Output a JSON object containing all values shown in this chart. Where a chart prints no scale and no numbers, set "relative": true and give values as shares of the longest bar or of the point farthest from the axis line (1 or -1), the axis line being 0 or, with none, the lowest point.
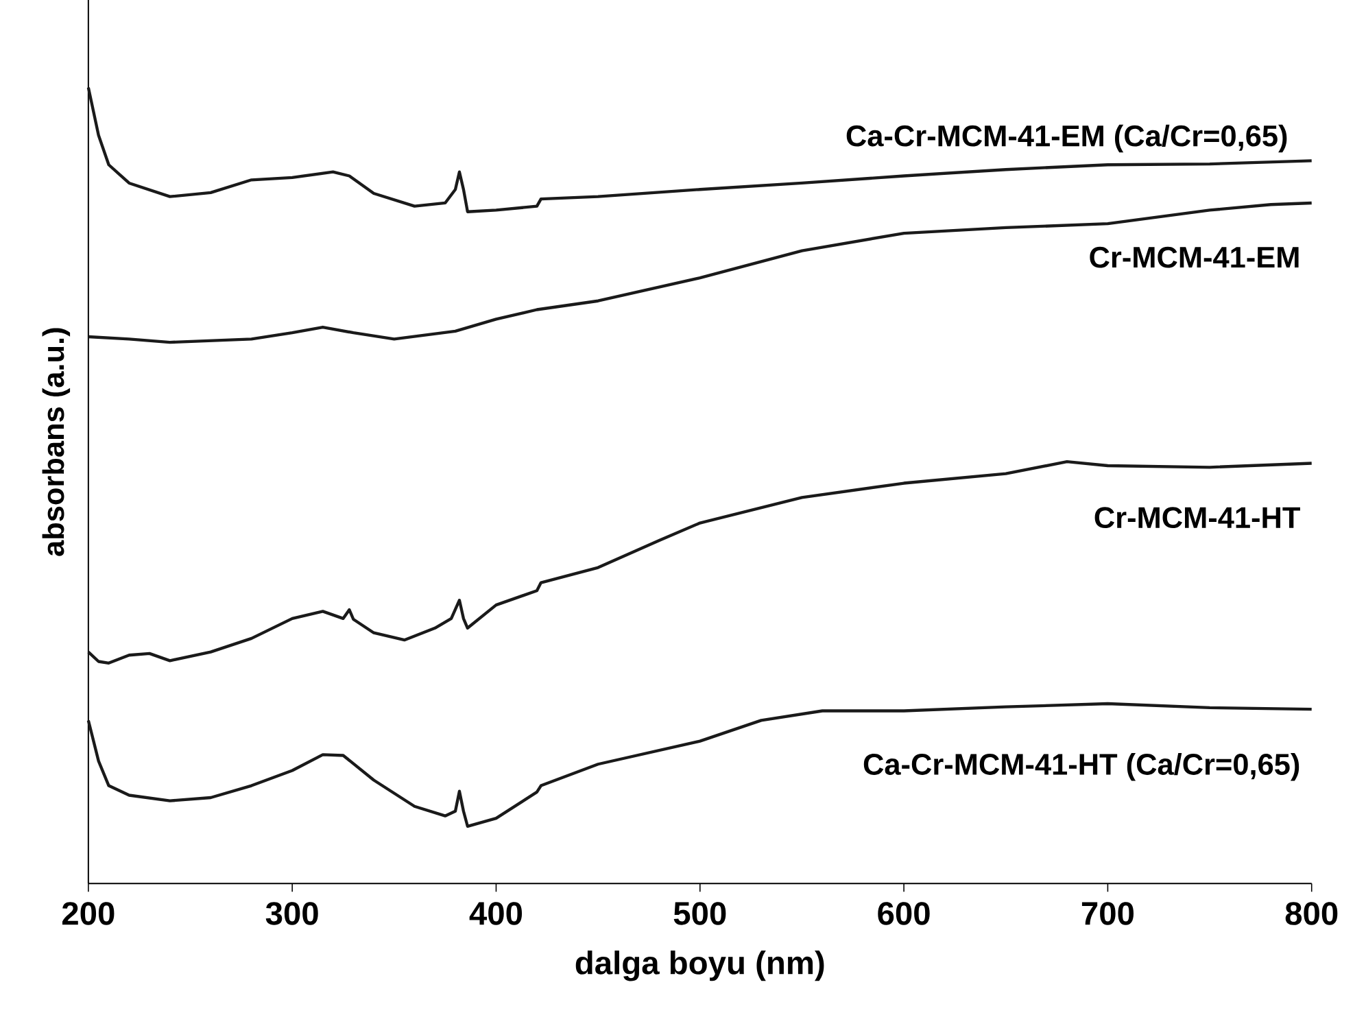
{
  "chart_data": {
    "type": "line",
    "xlabel": "dalga boyu (nm)",
    "ylabel": "absorbans (a.u.)",
    "relative": true,
    "xlim": [
      200,
      800
    ],
    "xticks": [
      200,
      300,
      400,
      500,
      600,
      700,
      800
    ],
    "grid": false,
    "series": [
      {
        "name": "Ca-Cr-MCM-41-EM (Ca/Cr=0,65)",
        "color": "#1a1a1a",
        "x": [
          200,
          205,
          210,
          220,
          240,
          260,
          280,
          300,
          320,
          328,
          340,
          360,
          375,
          380,
          382,
          384,
          386,
          400,
          420,
          422,
          450,
          500,
          550,
          600,
          650,
          700,
          750,
          800
        ],
        "values": [
          1,
          0.94,
          0.903,
          0.88,
          0.863,
          0.868,
          0.884,
          0.887,
          0.894,
          0.889,
          0.867,
          0.851,
          0.855,
          0.872,
          0.894,
          0.872,
          0.844,
          0.846,
          0.851,
          0.86,
          0.863,
          0.872,
          0.88,
          0.889,
          0.897,
          0.903,
          0.904,
          0.908
        ]
      },
      {
        "name": "Cr-MCM-41-EM",
        "color": "#1a1a1a",
        "x": [
          200,
          220,
          240,
          280,
          300,
          315,
          330,
          350,
          380,
          400,
          420,
          450,
          500,
          550,
          600,
          650,
          700,
          750,
          780,
          800
        ],
        "values": [
          0.687,
          0.684,
          0.68,
          0.684,
          0.692,
          0.699,
          0.692,
          0.684,
          0.694,
          0.709,
          0.721,
          0.732,
          0.761,
          0.795,
          0.817,
          0.824,
          0.829,
          0.846,
          0.853,
          0.855
        ]
      },
      {
        "name": "Cr-MCM-41-HT",
        "color": "#1a1a1a",
        "x": [
          200,
          205,
          210,
          220,
          230,
          240,
          260,
          280,
          300,
          315,
          325,
          328,
          330,
          340,
          355,
          370,
          378,
          382,
          384,
          386,
          400,
          420,
          422,
          450,
          480,
          500,
          550,
          600,
          650,
          680,
          700,
          750,
          800
        ],
        "values": [
          0.291,
          0.279,
          0.277,
          0.287,
          0.289,
          0.28,
          0.291,
          0.308,
          0.333,
          0.342,
          0.333,
          0.344,
          0.332,
          0.315,
          0.306,
          0.321,
          0.333,
          0.356,
          0.333,
          0.321,
          0.35,
          0.368,
          0.378,
          0.397,
          0.431,
          0.453,
          0.485,
          0.503,
          0.515,
          0.53,
          0.525,
          0.523,
          0.528
        ]
      },
      {
        "name": "Ca-Cr-MCM-41-HT (Ca/Cr=0,65)",
        "color": "#1a1a1a",
        "x": [
          200,
          205,
          210,
          220,
          240,
          260,
          280,
          300,
          315,
          325,
          340,
          360,
          375,
          380,
          382,
          384,
          386,
          400,
          420,
          422,
          450,
          500,
          530,
          560,
          600,
          650,
          700,
          750,
          800
        ],
        "values": [
          0.205,
          0.154,
          0.123,
          0.111,
          0.104,
          0.108,
          0.123,
          0.142,
          0.162,
          0.161,
          0.13,
          0.097,
          0.085,
          0.091,
          0.116,
          0.091,
          0.072,
          0.082,
          0.115,
          0.123,
          0.15,
          0.179,
          0.205,
          0.217,
          0.217,
          0.222,
          0.226,
          0.221,
          0.219
        ]
      }
    ]
  }
}
